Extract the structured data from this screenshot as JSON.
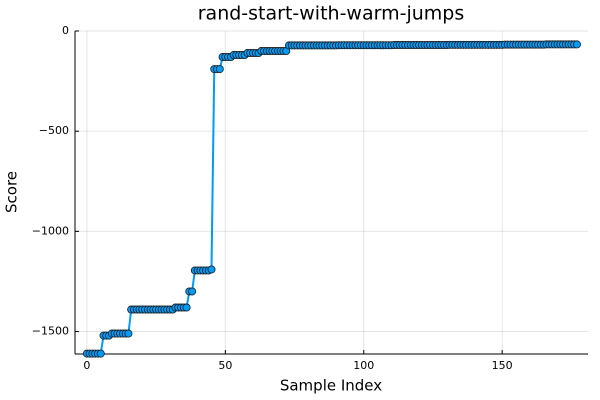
{
  "chart_data": {
    "type": "line",
    "title": "rand-start-with-warm-jumps",
    "xlabel": "Sample Index",
    "ylabel": "Score",
    "color": "#009af9",
    "marker_edge": "#1a1a1a",
    "xlim": [
      -4.3,
      181
    ],
    "ylim": [
      -1612,
      0
    ],
    "xticks": [
      0,
      50,
      100,
      150
    ],
    "yticks": [
      {
        "value": -1500,
        "label": "−1500"
      },
      {
        "value": -1000,
        "label": "−1000"
      },
      {
        "value": -500,
        "label": "−500"
      },
      0
    ],
    "grid": true,
    "x": [
      0,
      1,
      2,
      3,
      4,
      5,
      6,
      7,
      8,
      9,
      10,
      11,
      12,
      13,
      14,
      15,
      16,
      17,
      18,
      19,
      20,
      21,
      22,
      23,
      24,
      25,
      26,
      27,
      28,
      29,
      30,
      31,
      32,
      33,
      34,
      35,
      36,
      37,
      38,
      39,
      40,
      41,
      42,
      43,
      44,
      45,
      46,
      47,
      48,
      49,
      50,
      51,
      52,
      53,
      54,
      55,
      56,
      57,
      58,
      59,
      60,
      61,
      62,
      63,
      64,
      65,
      66,
      67,
      68,
      69,
      70,
      71,
      72,
      73,
      74,
      75,
      76,
      77,
      78,
      79,
      80,
      81,
      82,
      83,
      84,
      85,
      86,
      87,
      88,
      89,
      90,
      91,
      92,
      93,
      94,
      95,
      96,
      97,
      98,
      99,
      100,
      101,
      102,
      103,
      104,
      105,
      106,
      107,
      108,
      109,
      110,
      111,
      112,
      113,
      114,
      115,
      116,
      117,
      118,
      119,
      120,
      121,
      122,
      123,
      124,
      125,
      126,
      127,
      128,
      129,
      130,
      131,
      132,
      133,
      134,
      135,
      136,
      137,
      138,
      139,
      140,
      141,
      142,
      143,
      144,
      145,
      146,
      147,
      148,
      149,
      150,
      151,
      152,
      153,
      154,
      155,
      156,
      157,
      158,
      159,
      160,
      161,
      162,
      163,
      164,
      165,
      166,
      167,
      168,
      169,
      170,
      171,
      172,
      173,
      174,
      175,
      176,
      177
    ],
    "values": [
      -1610,
      -1610,
      -1610,
      -1610,
      -1610,
      -1610,
      -1520,
      -1520,
      -1520,
      -1510,
      -1510,
      -1510,
      -1510,
      -1510,
      -1510,
      -1510,
      -1390,
      -1390,
      -1390,
      -1390,
      -1390,
      -1390,
      -1390,
      -1390,
      -1390,
      -1390,
      -1390,
      -1390,
      -1390,
      -1390,
      -1390,
      -1390,
      -1380,
      -1380,
      -1380,
      -1380,
      -1380,
      -1300,
      -1300,
      -1195,
      -1195,
      -1195,
      -1195,
      -1195,
      -1195,
      -1190,
      -190,
      -190,
      -190,
      -130,
      -130,
      -130,
      -130,
      -120,
      -120,
      -120,
      -120,
      -120,
      -110,
      -110,
      -110,
      -110,
      -110,
      -100,
      -100,
      -100,
      -100,
      -100,
      -100,
      -100,
      -100,
      -100,
      -100,
      -72,
      -72,
      -72,
      -72,
      -72,
      -72,
      -72,
      -72,
      -72,
      -72,
      -72,
      -72,
      -72,
      -72,
      -72,
      -72,
      -72,
      -72,
      -71,
      -71,
      -71,
      -71,
      -71,
      -71,
      -71,
      -71,
      -71,
      -71,
      -71,
      -71,
      -71,
      -71,
      -71,
      -71,
      -71,
      -71,
      -71,
      -71,
      -70,
      -70,
      -70,
      -70,
      -70,
      -70,
      -70,
      -70,
      -70,
      -70,
      -70,
      -70,
      -70,
      -70,
      -70,
      -70,
      -70,
      -70,
      -70,
      -70,
      -69,
      -69,
      -69,
      -69,
      -69,
      -69,
      -69,
      -69,
      -69,
      -69,
      -69,
      -69,
      -69,
      -69,
      -69,
      -69,
      -69,
      -69,
      -69,
      -69,
      -68,
      -68,
      -68,
      -68,
      -68,
      -68,
      -68,
      -68,
      -68,
      -68,
      -68,
      -68,
      -68,
      -68,
      -68,
      -67,
      -67,
      -67,
      -67,
      -67,
      -67,
      -67,
      -67,
      -67,
      -67,
      -67,
      -67
    ]
  }
}
